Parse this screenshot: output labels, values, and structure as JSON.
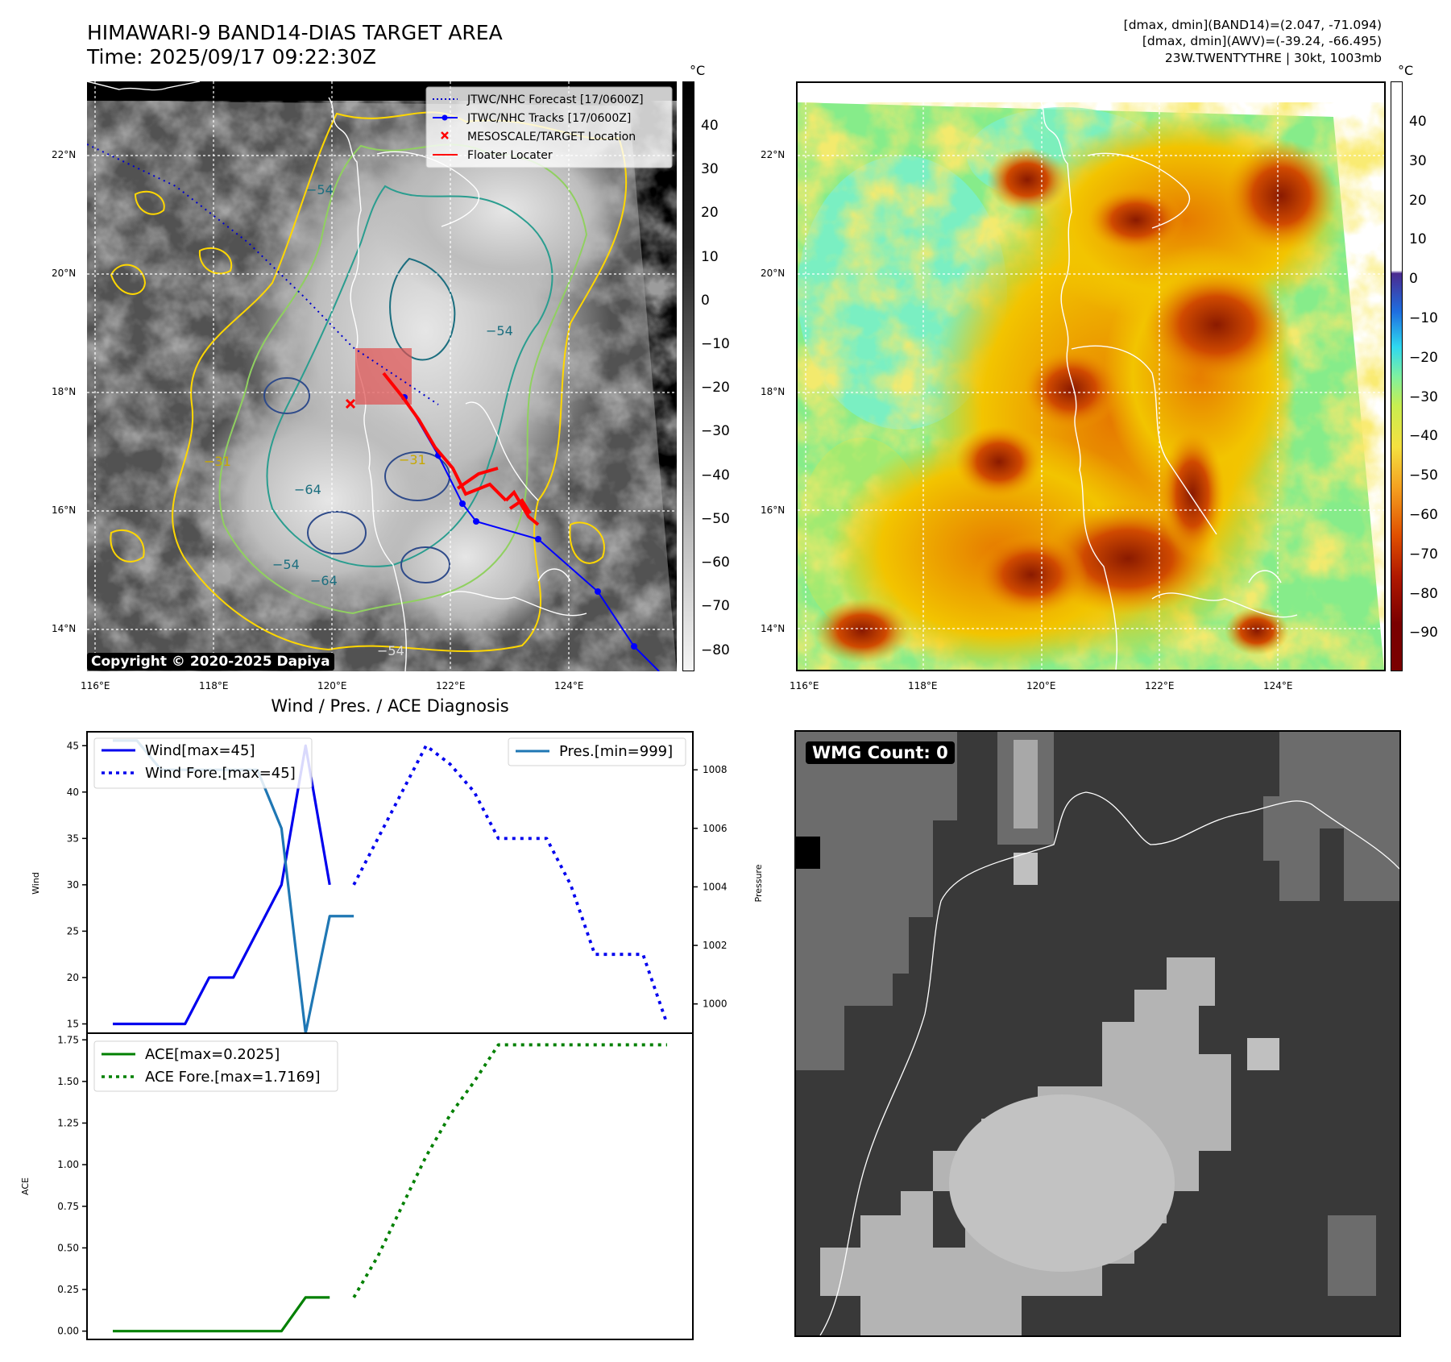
{
  "header": {
    "title_line1": "HIMAWARI-9 BAND14-DIAS TARGET AREA",
    "title_line2": "Time: 2025/09/17 09:22:30Z",
    "info_line1": "[dmax, dmin](BAND14)=(2.047, -71.094)",
    "info_line2": "[dmax, dmin](AWV)=(-39.24, -66.495)",
    "info_line3": "23W.TWENTYTHRE | 30kt, 1003mb"
  },
  "map_axes": {
    "lon_ticks": [
      "116°E",
      "118°E",
      "120°E",
      "122°E",
      "124°E"
    ],
    "lat_ticks": [
      "22°N",
      "20°N",
      "18°N",
      "16°N",
      "14°N"
    ],
    "copyright": "Copyright © 2020-2025 Dapiya"
  },
  "colorbar_left": {
    "unit": "°C",
    "ticks": [
      "40",
      "30",
      "20",
      "10",
      "0",
      "−10",
      "−20",
      "−30",
      "−40",
      "−50",
      "−60",
      "−70",
      "−80"
    ]
  },
  "colorbar_right": {
    "unit": "°C",
    "ticks": [
      "40",
      "30",
      "20",
      "10",
      "0",
      "−10",
      "−20",
      "−30",
      "−40",
      "−50",
      "−60",
      "−70",
      "−80",
      "−90"
    ]
  },
  "legend_map": {
    "forecast": "JTWC/NHC Forecast [17/0600Z]",
    "tracks": "JTWC/NHC Tracks [17/0600Z]",
    "target": "MESOSCALE/TARGET Location",
    "floater": "Floater Locater"
  },
  "contour_labels": [
    "−54",
    "−54",
    "−64",
    "−54",
    "−64",
    "−54",
    "−31",
    "−31"
  ],
  "diag_title": "Wind / Pres. / ACE Diagnosis",
  "wmg_label": "WMG Count: 0",
  "colors": {
    "wind": "#0000ee",
    "pressure": "#1f77b4",
    "ace": "#008000",
    "track": "#0000ff",
    "floater": "#ff0000"
  },
  "chart_data": [
    {
      "type": "line",
      "ylabel": "Wind",
      "y2label": "Pressure",
      "ylim": [
        14,
        46.5
      ],
      "y_ticks": [
        15,
        20,
        25,
        30,
        35,
        40,
        45
      ],
      "y2lim": [
        999,
        1009.3
      ],
      "y2_ticks": [
        1000,
        1002,
        1004,
        1006,
        1008
      ],
      "legend_left": [
        "Wind[max=45]",
        "Wind Fore.[max=45]"
      ],
      "legend_right": [
        "Pres.[min=999]"
      ],
      "series": [
        {
          "name": "Wind[max=45]",
          "style": "solid",
          "axis": "left",
          "x": [
            0,
            1,
            2,
            3,
            4,
            5,
            6,
            7,
            8,
            9
          ],
          "values": [
            15,
            15,
            15,
            15,
            20,
            20,
            25,
            30,
            45,
            30
          ]
        },
        {
          "name": "Wind Fore.[max=45]",
          "style": "dotted",
          "axis": "left",
          "x": [
            10,
            11,
            12,
            13,
            14,
            15,
            16,
            17,
            18,
            19,
            20,
            21,
            22,
            23
          ],
          "values": [
            30,
            35,
            40,
            45,
            43,
            40,
            35,
            35,
            35,
            30,
            22.5,
            22.5,
            22.5,
            15
          ]
        },
        {
          "name": "Pres.[min=999]",
          "style": "solid",
          "axis": "right",
          "x": [
            0,
            1,
            2,
            3,
            4,
            5,
            6,
            7,
            8,
            9,
            10
          ],
          "values": [
            1009,
            1009,
            1008,
            1008,
            1008,
            1008,
            1008,
            1006,
            999,
            1003,
            1003
          ]
        }
      ]
    },
    {
      "type": "line",
      "ylabel": "ACE",
      "ylim": [
        -0.05,
        1.79
      ],
      "y_ticks": [
        "0.00",
        "0.25",
        "0.50",
        "0.75",
        "1.00",
        "1.25",
        "1.50",
        "1.75"
      ],
      "legend": [
        "ACE[max=0.2025]",
        "ACE Fore.[max=1.7169]"
      ],
      "series": [
        {
          "name": "ACE[max=0.2025]",
          "style": "solid",
          "x": [
            0,
            1,
            2,
            3,
            4,
            5,
            6,
            7,
            8,
            9
          ],
          "values": [
            0,
            0,
            0,
            0,
            0,
            0,
            0,
            0,
            0.2025,
            0.2025
          ]
        },
        {
          "name": "ACE Fore.[max=1.7169]",
          "style": "dotted",
          "x": [
            10,
            11,
            12,
            13,
            14,
            15,
            16,
            17,
            18,
            19,
            20,
            21,
            22,
            23
          ],
          "values": [
            0.2025,
            0.45,
            0.75,
            1.05,
            1.3,
            1.5,
            1.72,
            1.72,
            1.72,
            1.72,
            1.72,
            1.72,
            1.72,
            1.72
          ]
        }
      ]
    }
  ]
}
